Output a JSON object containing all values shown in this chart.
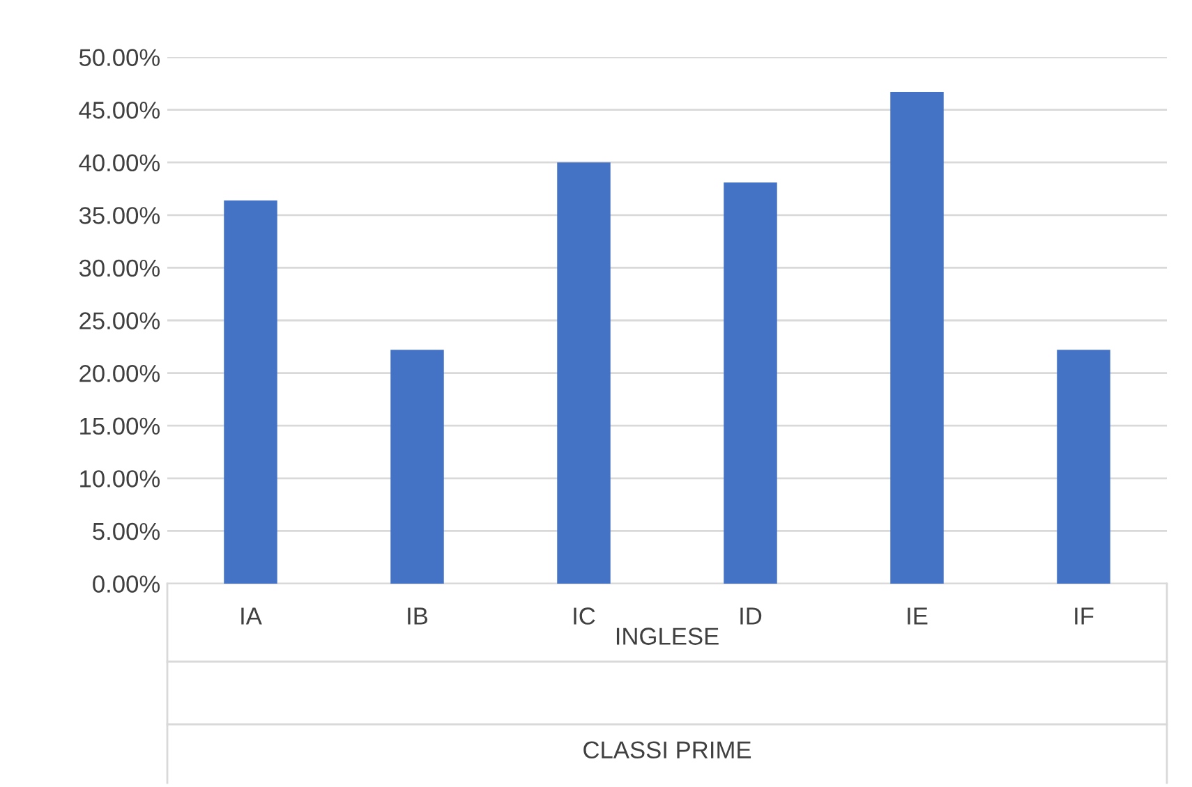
{
  "chart_data": {
    "type": "bar",
    "categories": [
      "IA",
      "IB",
      "IC",
      "ID",
      "IE",
      "IF"
    ],
    "values": [
      36.4,
      22.2,
      40.0,
      38.1,
      46.7,
      22.2
    ],
    "color": "#4472c4",
    "xlabel": "INGLESE",
    "annotations": [
      "CLASSI PRIME"
    ],
    "ylim": [
      0,
      50
    ],
    "yticks": [
      {
        "value": 0,
        "label": "0.00%"
      },
      {
        "value": 5,
        "label": "5.00%"
      },
      {
        "value": 10,
        "label": "10.00%"
      },
      {
        "value": 15,
        "label": "15.00%"
      },
      {
        "value": 20,
        "label": "20.00%"
      },
      {
        "value": 25,
        "label": "25.00%"
      },
      {
        "value": 30,
        "label": "30.00%"
      },
      {
        "value": 35,
        "label": "35.00%"
      },
      {
        "value": 40,
        "label": "40.00%"
      },
      {
        "value": 45,
        "label": "45.00%"
      },
      {
        "value": 50,
        "label": "50.00%"
      }
    ],
    "grid": "y",
    "legend": false
  }
}
